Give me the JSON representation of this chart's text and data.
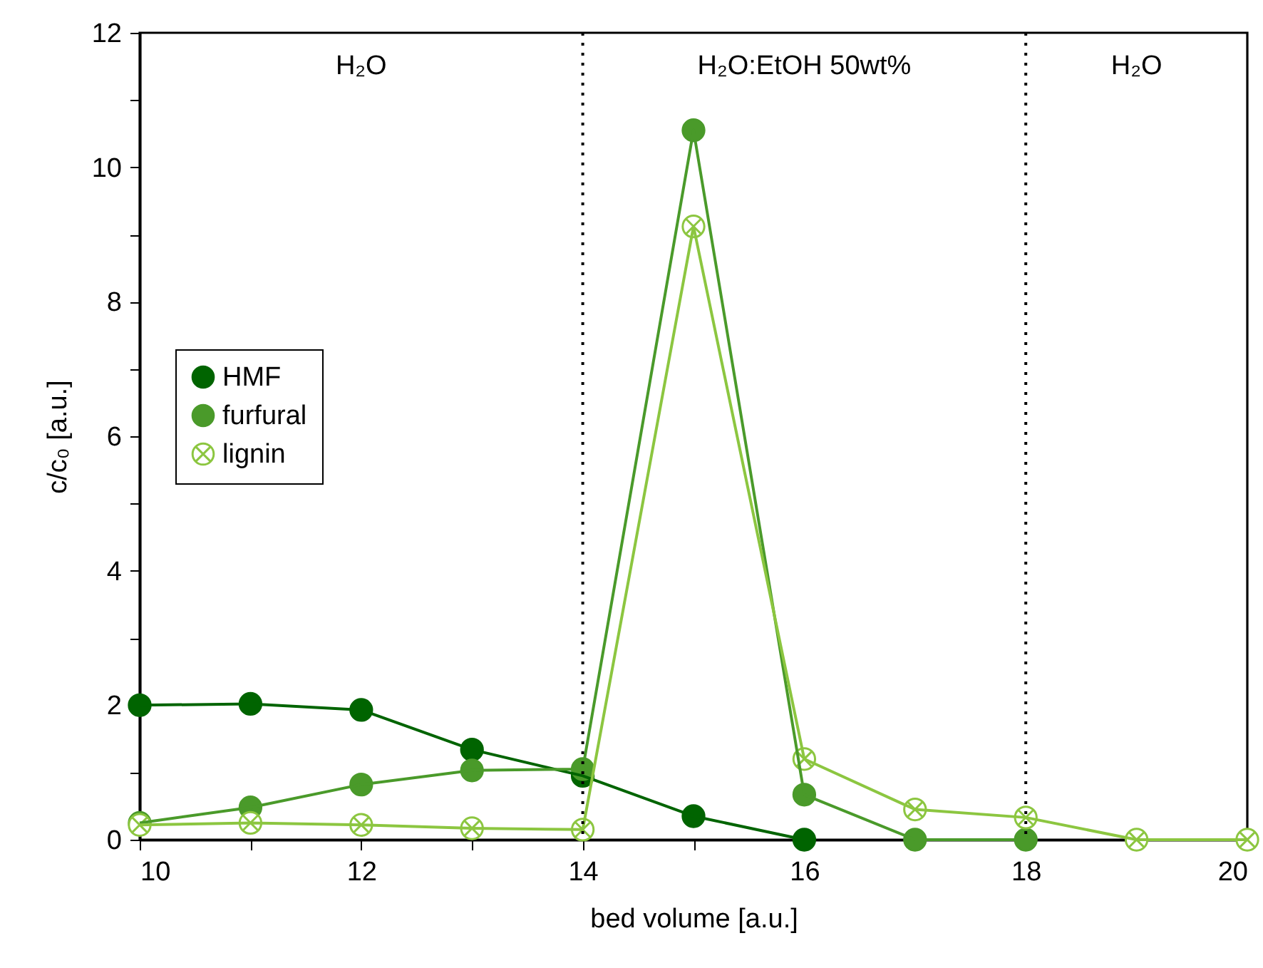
{
  "chart_data": {
    "type": "line",
    "xlabel": "bed volume [a.u.]",
    "ylabel": "c/c₀ [a.u.]",
    "xlim": [
      10,
      20
    ],
    "xticks": [
      10,
      {
        "value": 11,
        "label": null
      },
      12,
      {
        "value": 13,
        "label": null
      },
      14,
      {
        "value": 15,
        "label": null
      },
      16,
      {
        "value": 17,
        "label": null
      },
      18,
      {
        "value": 19,
        "label": null
      },
      20
    ],
    "ylim": [
      0,
      12
    ],
    "yticks": [
      0,
      {
        "value": 1,
        "label": null
      },
      2,
      {
        "value": 3,
        "label": null
      },
      4,
      {
        "value": 5,
        "label": null
      },
      6,
      {
        "value": 7,
        "label": null
      },
      8,
      {
        "value": 9,
        "label": null
      },
      10,
      {
        "value": 11,
        "label": null
      },
      12
    ],
    "grid": false,
    "legend": "left",
    "series": [
      {
        "name": "HMF",
        "color": "#006400",
        "marker": "circle",
        "x": [
          10,
          11,
          12,
          13,
          14,
          15,
          16
        ],
        "values": [
          2.0,
          2.02,
          1.93,
          1.34,
          0.95,
          0.35,
          0
        ]
      },
      {
        "name": "furfural",
        "color": "#4a9a2a",
        "marker": "circle",
        "x": [
          10,
          11,
          12,
          13,
          14,
          15,
          16,
          17,
          18
        ],
        "values": [
          0.25,
          0.48,
          0.82,
          1.03,
          1.05,
          10.55,
          0.67,
          0,
          0
        ]
      },
      {
        "name": "lignin",
        "color": "#8cc640",
        "marker": "cross",
        "x": [
          10,
          11,
          12,
          13,
          14,
          15,
          16,
          17,
          18,
          19,
          20
        ],
        "values": [
          0.22,
          0.25,
          0.22,
          0.17,
          0.15,
          9.12,
          1.2,
          0.45,
          0.33,
          0,
          0
        ]
      }
    ],
    "ref_lines": [
      {
        "axis": "x",
        "value": 14,
        "line_style": "dotted",
        "color": "#000000"
      },
      {
        "axis": "x",
        "value": 18,
        "line_style": "dotted",
        "color": "#000000"
      }
    ],
    "annotations": [
      "H₂O",
      "H₂O:EtOH 50wt%",
      "H₂O"
    ]
  }
}
